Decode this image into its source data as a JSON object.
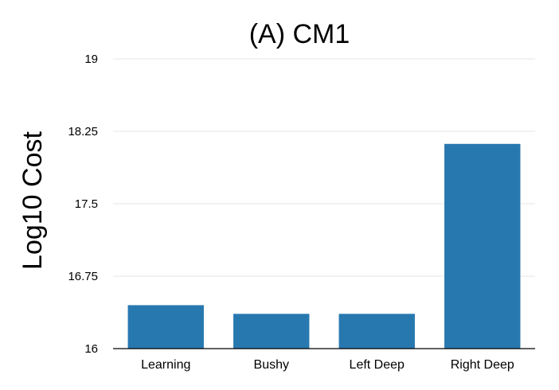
{
  "chart_data": {
    "type": "bar",
    "title": "(A) CM1",
    "xlabel": "",
    "ylabel": "Log10 Cost",
    "categories": [
      "Learning",
      "Bushy",
      "Left Deep",
      "Right Deep"
    ],
    "values": [
      16.45,
      16.36,
      16.36,
      18.12
    ],
    "ylim": [
      16,
      19
    ],
    "yticks": [
      16,
      16.75,
      17.5,
      18.25,
      19
    ],
    "ytick_labels": [
      "16",
      "16.75",
      "17.5",
      "18.25",
      "19"
    ],
    "grid": true,
    "bar_color": "#2878b0"
  }
}
